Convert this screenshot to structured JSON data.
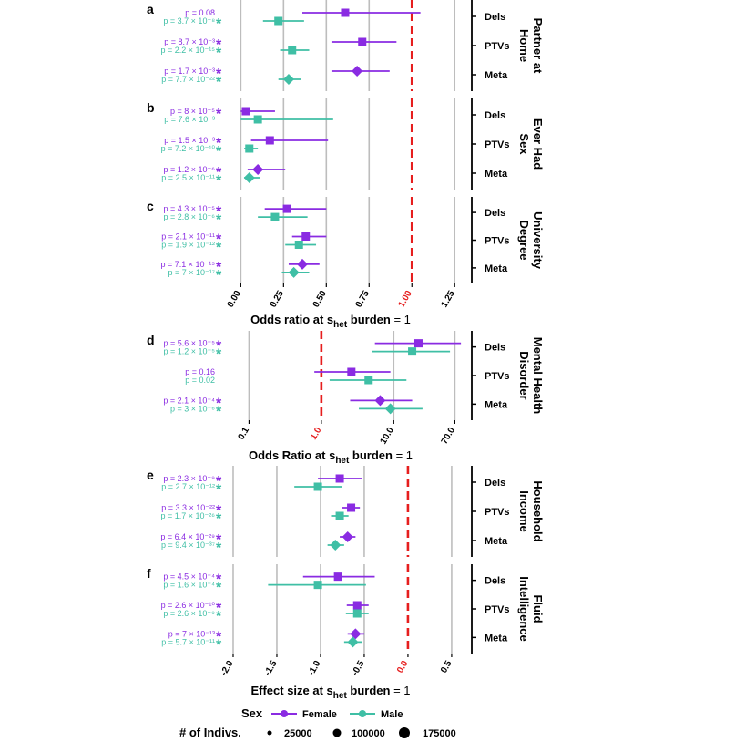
{
  "colors": {
    "female": "#8a2be2",
    "male": "#3fbfa5",
    "ref": "#e61e1e",
    "grid": "#bdbdbd",
    "axis": "#000000"
  },
  "legend": {
    "sex_title": "Sex",
    "female": "Female",
    "male": "Male",
    "size_title": "# of Indivs.",
    "sizes": [
      "25000",
      "100000",
      "175000"
    ]
  },
  "chart_data": [
    {
      "type": "forest",
      "panel": "a",
      "title": "Partner at Home",
      "title_lines": [
        "Partner at",
        "Home"
      ],
      "xlim": [
        -0.3,
        1.35
      ],
      "ref": 1.0,
      "ticks": [
        0.0,
        0.25,
        0.5,
        0.75,
        1.0,
        1.25
      ],
      "rows": [
        {
          "label": "Dels",
          "shape": "square",
          "female": {
            "est": 0.61,
            "lo": 0.36,
            "hi": 1.05,
            "p": "p = 0.08",
            "sig": false
          },
          "male": {
            "est": 0.22,
            "lo": 0.13,
            "hi": 0.37,
            "p": "p = 3.7 × 10⁻⁸",
            "sig": true
          }
        },
        {
          "label": "PTVs",
          "shape": "square",
          "female": {
            "est": 0.71,
            "lo": 0.53,
            "hi": 0.91,
            "p": "p = 8.7 × 10⁻³",
            "sig": true
          },
          "male": {
            "est": 0.3,
            "lo": 0.23,
            "hi": 0.4,
            "p": "p = 2.2 × 10⁻¹⁵",
            "sig": true
          }
        },
        {
          "label": "Meta",
          "shape": "diamond",
          "female": {
            "est": 0.68,
            "lo": 0.53,
            "hi": 0.87,
            "p": "p = 1.7 × 10⁻³",
            "sig": true
          },
          "male": {
            "est": 0.28,
            "lo": 0.22,
            "hi": 0.35,
            "p": "p = 7.7 × 10⁻²²",
            "sig": true
          }
        }
      ]
    },
    {
      "type": "forest",
      "panel": "b",
      "title": "Ever Had Sex",
      "title_lines": [
        "Ever Had",
        "Sex"
      ],
      "xlim": [
        -0.3,
        1.35
      ],
      "ref": 1.0,
      "ticks": [
        0.0,
        0.25,
        0.5,
        0.75,
        1.0,
        1.25
      ],
      "rows": [
        {
          "label": "Dels",
          "shape": "square",
          "female": {
            "est": 0.03,
            "lo": 0.0,
            "hi": 0.2,
            "p": "p = 8 × 10⁻⁵",
            "sig": true
          },
          "male": {
            "est": 0.1,
            "lo": 0.0,
            "hi": 0.54,
            "p": "p = 7.6 × 10⁻³",
            "sig": false
          }
        },
        {
          "label": "PTVs",
          "shape": "square",
          "female": {
            "est": 0.17,
            "lo": 0.06,
            "hi": 0.51,
            "p": "p = 1.5 × 10⁻³",
            "sig": true
          },
          "male": {
            "est": 0.05,
            "lo": 0.02,
            "hi": 0.1,
            "p": "p = 7.2 × 10⁻¹⁰",
            "sig": true
          }
        },
        {
          "label": "Meta",
          "shape": "diamond",
          "female": {
            "est": 0.1,
            "lo": 0.04,
            "hi": 0.26,
            "p": "p = 1.2 × 10⁻⁶",
            "sig": true
          },
          "male": {
            "est": 0.05,
            "lo": 0.02,
            "hi": 0.11,
            "p": "p = 2.5 × 10⁻¹¹",
            "sig": true
          }
        }
      ]
    },
    {
      "type": "forest",
      "panel": "c",
      "title": "University Degree",
      "title_lines": [
        "University",
        "Degree"
      ],
      "xlim": [
        -0.3,
        1.35
      ],
      "ref": 1.0,
      "ticks": [
        0.0,
        0.25,
        0.5,
        0.75,
        1.0,
        1.25
      ],
      "xlabel": "Odds ratio at s_het burden = 1",
      "rows": [
        {
          "label": "Dels",
          "shape": "square",
          "female": {
            "est": 0.27,
            "lo": 0.14,
            "hi": 0.5,
            "p": "p = 4.3 × 10⁻⁵",
            "sig": true
          },
          "male": {
            "est": 0.2,
            "lo": 0.1,
            "hi": 0.39,
            "p": "p = 2.8 × 10⁻⁶",
            "sig": true
          }
        },
        {
          "label": "PTVs",
          "shape": "square",
          "female": {
            "est": 0.38,
            "lo": 0.3,
            "hi": 0.5,
            "p": "p = 2.1 × 10⁻¹¹",
            "sig": true
          },
          "male": {
            "est": 0.34,
            "lo": 0.26,
            "hi": 0.44,
            "p": "p = 1.9 × 10⁻¹²",
            "sig": true
          }
        },
        {
          "label": "Meta",
          "shape": "diamond",
          "female": {
            "est": 0.36,
            "lo": 0.28,
            "hi": 0.46,
            "p": "p = 7.1 × 10⁻¹⁵",
            "sig": true
          },
          "male": {
            "est": 0.31,
            "lo": 0.24,
            "hi": 0.4,
            "p": "p = 7 × 10⁻¹⁷",
            "sig": true
          }
        }
      ]
    },
    {
      "type": "forest",
      "panel": "d",
      "title": "Mental Health Disorder",
      "title_lines": [
        "Mental Health",
        "Disorder"
      ],
      "scale": "log",
      "xlim": [
        0.015,
        120
      ],
      "ref": 1.0,
      "ticks": [
        0.1,
        1.0,
        10.0,
        70.0
      ],
      "xlabel": "Odds Ratio at s_het burden = 1",
      "rows": [
        {
          "label": "Dels",
          "shape": "square",
          "female": {
            "est": 22,
            "lo": 5.5,
            "hi": 85,
            "p": "p = 5.6 × 10⁻⁵",
            "sig": true
          },
          "male": {
            "est": 18,
            "lo": 5.0,
            "hi": 60,
            "p": "p = 1.2 × 10⁻⁵",
            "sig": true
          }
        },
        {
          "label": "PTVs",
          "shape": "square",
          "female": {
            "est": 2.6,
            "lo": 0.8,
            "hi": 9.0,
            "p": "p = 0.16",
            "sig": false
          },
          "male": {
            "est": 4.5,
            "lo": 1.3,
            "hi": 15,
            "p": "p = 0.02",
            "sig": false
          }
        },
        {
          "label": "Meta",
          "shape": "diamond",
          "female": {
            "est": 6.5,
            "lo": 2.5,
            "hi": 18,
            "p": "p = 2.1 × 10⁻⁴",
            "sig": true
          },
          "male": {
            "est": 9.0,
            "lo": 3.3,
            "hi": 25,
            "p": "p = 3 × 10⁻⁶",
            "sig": true
          }
        }
      ]
    },
    {
      "type": "forest",
      "panel": "e",
      "title": "Household Income",
      "title_lines": [
        "Household",
        "Income"
      ],
      "xlim": [
        -2.5,
        0.73
      ],
      "ref": 0.0,
      "ticks": [
        -2.0,
        -1.5,
        -1.0,
        -0.5,
        0.0,
        0.5
      ],
      "rows": [
        {
          "label": "Dels",
          "shape": "square",
          "female": {
            "est": -0.78,
            "lo": -1.03,
            "hi": -0.53,
            "p": "p = 2.3 × 10⁻⁹",
            "sig": true
          },
          "male": {
            "est": -1.03,
            "lo": -1.3,
            "hi": -0.76,
            "p": "p = 2.7 × 10⁻¹²",
            "sig": true
          }
        },
        {
          "label": "PTVs",
          "shape": "square",
          "female": {
            "est": -0.65,
            "lo": -0.75,
            "hi": -0.55,
            "p": "p = 3.3 × 10⁻²²",
            "sig": true
          },
          "male": {
            "est": -0.78,
            "lo": -0.88,
            "hi": -0.68,
            "p": "p = 1.7 × 10⁻²⁶",
            "sig": true
          }
        },
        {
          "label": "Meta",
          "shape": "diamond",
          "female": {
            "est": -0.69,
            "lo": -0.78,
            "hi": -0.6,
            "p": "p = 6.4 × 10⁻²⁹",
            "sig": true
          },
          "male": {
            "est": -0.83,
            "lo": -0.92,
            "hi": -0.73,
            "p": "p = 9.4 × 10⁻³⁷",
            "sig": true
          }
        }
      ]
    },
    {
      "type": "forest",
      "panel": "f",
      "title": "Fluid Intelligence",
      "title_lines": [
        "Fluid",
        "Intelligence"
      ],
      "xlim": [
        -2.5,
        0.73
      ],
      "ref": 0.0,
      "ticks": [
        -2.0,
        -1.5,
        -1.0,
        -0.5,
        0.0,
        0.5
      ],
      "xlabel": "Effect size at s_het burden = 1",
      "rows": [
        {
          "label": "Dels",
          "shape": "square",
          "female": {
            "est": -0.8,
            "lo": -1.2,
            "hi": -0.38,
            "p": "p = 4.5 × 10⁻⁴",
            "sig": true
          },
          "male": {
            "est": -1.03,
            "lo": -1.6,
            "hi": -0.48,
            "p": "p = 1.6 × 10⁻⁴",
            "sig": true
          }
        },
        {
          "label": "PTVs",
          "shape": "square",
          "female": {
            "est": -0.58,
            "lo": -0.7,
            "hi": -0.45,
            "p": "p = 2.6 × 10⁻¹⁰",
            "sig": true
          },
          "male": {
            "est": -0.58,
            "lo": -0.71,
            "hi": -0.45,
            "p": "p = 2.6 × 10⁻⁹",
            "sig": true
          }
        },
        {
          "label": "Meta",
          "shape": "diamond",
          "female": {
            "est": -0.6,
            "lo": -0.69,
            "hi": -0.5,
            "p": "p = 7 × 10⁻¹³",
            "sig": true
          },
          "male": {
            "est": -0.63,
            "lo": -0.73,
            "hi": -0.53,
            "p": "p = 5.7 × 10⁻¹¹",
            "sig": true
          }
        }
      ]
    }
  ]
}
